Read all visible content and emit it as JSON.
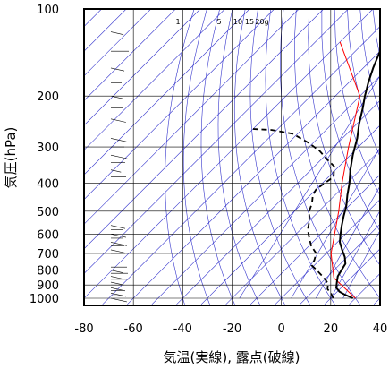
{
  "chart_data": {
    "type": "skew-t",
    "xlabel": "気温(実線), 露点(破線)",
    "ylabel": "気圧(hPa)",
    "x_ticks": [
      -80,
      -60,
      -40,
      -20,
      0,
      20,
      40
    ],
    "y_ticks": [
      100,
      200,
      300,
      400,
      500,
      600,
      700,
      800,
      900,
      1000
    ],
    "xlim": [
      -80,
      40
    ],
    "ylim_hpa": [
      1050,
      100
    ],
    "y_scale": "log",
    "mixing_ratio_labels": [
      "1",
      "5",
      "10",
      "15",
      "20g"
    ],
    "colors": {
      "temperature": "#000000",
      "dewpoint": "#000000",
      "reference_lapse": "#ff0000",
      "isotherms_adiabats": "#3333cc",
      "grid": "#000000"
    },
    "temperature_profile": [
      {
        "p": 1000,
        "t": 29
      },
      {
        "p": 970,
        "t": 24
      },
      {
        "p": 950,
        "t": 21
      },
      {
        "p": 920,
        "t": 18
      },
      {
        "p": 880,
        "t": 16
      },
      {
        "p": 840,
        "t": 14
      },
      {
        "p": 800,
        "t": 13
      },
      {
        "p": 760,
        "t": 12
      },
      {
        "p": 720,
        "t": 9
      },
      {
        "p": 680,
        "t": 5
      },
      {
        "p": 640,
        "t": 1
      },
      {
        "p": 600,
        "t": -2
      },
      {
        "p": 560,
        "t": -5
      },
      {
        "p": 520,
        "t": -8
      },
      {
        "p": 480,
        "t": -11
      },
      {
        "p": 440,
        "t": -15
      },
      {
        "p": 400,
        "t": -19
      },
      {
        "p": 360,
        "t": -24
      },
      {
        "p": 320,
        "t": -29
      },
      {
        "p": 280,
        "t": -34
      },
      {
        "p": 250,
        "t": -39
      },
      {
        "p": 220,
        "t": -44
      },
      {
        "p": 200,
        "t": -48
      },
      {
        "p": 180,
        "t": -52
      },
      {
        "p": 160,
        "t": -56
      },
      {
        "p": 140,
        "t": -60
      },
      {
        "p": 125,
        "t": -62
      },
      {
        "p": 112,
        "t": -68
      },
      {
        "p": 104,
        "t": -69
      },
      {
        "p": 100,
        "t": -71
      }
    ],
    "dewpoint_profile": [
      {
        "p": 1000,
        "t": 21
      },
      {
        "p": 960,
        "t": 18
      },
      {
        "p": 930,
        "t": 15
      },
      {
        "p": 890,
        "t": 13
      },
      {
        "p": 850,
        "t": 9
      },
      {
        "p": 800,
        "t": 3
      },
      {
        "p": 770,
        "t": -1
      },
      {
        "p": 740,
        "t": -2
      },
      {
        "p": 700,
        "t": -4
      },
      {
        "p": 660,
        "t": -9
      },
      {
        "p": 620,
        "t": -13
      },
      {
        "p": 580,
        "t": -17
      },
      {
        "p": 540,
        "t": -20
      },
      {
        "p": 500,
        "t": -24
      },
      {
        "p": 470,
        "t": -26
      },
      {
        "p": 440,
        "t": -29
      },
      {
        "p": 420,
        "t": -30
      },
      {
        "p": 400,
        "t": -29
      },
      {
        "p": 380,
        "t": -28
      },
      {
        "p": 350,
        "t": -32
      },
      {
        "p": 330,
        "t": -38
      },
      {
        "p": 310,
        "t": -44
      },
      {
        "p": 290,
        "t": -52
      },
      {
        "p": 270,
        "t": -62
      },
      {
        "p": 262,
        "t": -72
      },
      {
        "p": 260,
        "t": -80
      }
    ],
    "reference_lapse_profile": [
      {
        "p": 1000,
        "t": 30
      },
      {
        "p": 850,
        "t": 13
      },
      {
        "p": 700,
        "t": 2
      },
      {
        "p": 500,
        "t": -12
      },
      {
        "p": 400,
        "t": -22
      },
      {
        "p": 300,
        "t": -34
      },
      {
        "p": 200,
        "t": -50
      },
      {
        "p": 130,
        "t": -80
      }
    ]
  }
}
